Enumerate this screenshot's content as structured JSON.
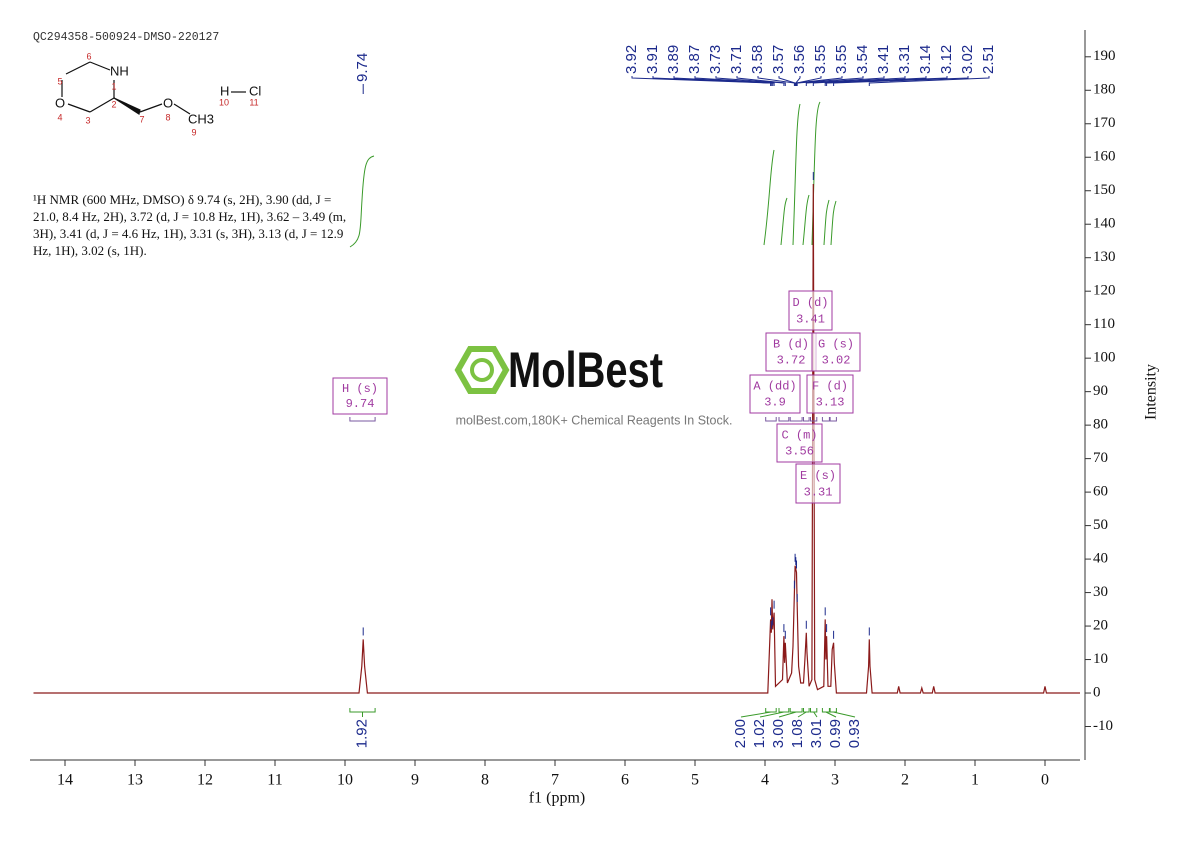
{
  "sample_id": "QC294358-500924-DMSO-220127",
  "description": "¹H NMR (600 MHz, DMSO) δ 9.74 (s, 2H), 3.90 (dd, J = 21.0, 8.4 Hz, 2H), 3.72 (d, J = 10.8 Hz, 1H), 3.62 – 3.49 (m, 3H), 3.41 (d, J = 4.6 Hz, 1H), 3.31 (s, 3H), 3.13 (d, J = 12.9 Hz, 1H), 3.02 (s, 1H).",
  "structure": {
    "atoms": [
      "NH",
      "O",
      "O",
      "CH3",
      "H",
      "Cl"
    ],
    "numbers": [
      "1",
      "2",
      "3",
      "4",
      "5",
      "6",
      "7",
      "8",
      "9",
      "10",
      "11"
    ]
  },
  "watermark": {
    "brand": "MolBest",
    "tagline": "molBest.com,180K+ Chemical Reagents In Stock."
  },
  "chart_data": {
    "type": "line",
    "xlabel": "f1 (ppm)",
    "ylabel": "Intensity",
    "xlim": [
      14.5,
      -0.5
    ],
    "xticks": [
      14,
      13,
      12,
      11,
      10,
      9,
      8,
      7,
      6,
      5,
      4,
      3,
      2,
      1,
      0
    ],
    "ylim": [
      -20,
      198
    ],
    "yticks": [
      -10,
      0,
      10,
      20,
      30,
      40,
      50,
      60,
      70,
      80,
      90,
      100,
      110,
      120,
      130,
      140,
      150,
      160,
      170,
      180,
      190
    ],
    "series": [
      {
        "color": "#8b1a1a",
        "x": [
          14.45,
          9.8,
          9.76,
          9.74,
          9.72,
          9.68,
          3.96,
          3.92,
          3.91,
          3.9,
          3.89,
          3.87,
          3.85,
          3.75,
          3.73,
          3.72,
          3.71,
          3.68,
          3.62,
          3.6,
          3.58,
          3.57,
          3.56,
          3.55,
          3.54,
          3.52,
          3.49,
          3.45,
          3.43,
          3.41,
          3.4,
          3.37,
          3.33,
          3.31,
          3.29,
          3.25,
          3.16,
          3.14,
          3.13,
          3.12,
          3.1,
          3.06,
          3.04,
          3.02,
          3.01,
          2.98,
          2.55,
          2.52,
          2.51,
          2.5,
          2.47,
          2.11,
          2.09,
          2.07,
          1.78,
          1.76,
          1.74,
          1.61,
          1.59,
          1.57,
          0.02,
          0,
          -0.02,
          -0.5
        ],
        "values": [
          0,
          0,
          8,
          16,
          8,
          0,
          0,
          22,
          18,
          28,
          19,
          24,
          2,
          4,
          17,
          9,
          15,
          3,
          6,
          14,
          30,
          38,
          37,
          36,
          26,
          8,
          3,
          3,
          10,
          18,
          12,
          2,
          4,
          152,
          4,
          1,
          2,
          22,
          10,
          17,
          2,
          2,
          13,
          15,
          9,
          0,
          0,
          8,
          16,
          8,
          0,
          0,
          2,
          0,
          0,
          1.5,
          0,
          0,
          2,
          0,
          0,
          2,
          0,
          0
        ]
      }
    ],
    "peak_labels": {
      "color": "#1c2a8c",
      "values": [
        9.74,
        3.92,
        3.91,
        3.89,
        3.87,
        3.73,
        3.71,
        3.58,
        3.57,
        3.56,
        3.55,
        3.55,
        3.54,
        3.41,
        3.31,
        3.14,
        3.12,
        3.02,
        2.51
      ]
    },
    "integrals": {
      "color": "#3a9a2a",
      "items": [
        {
          "from": 9.93,
          "to": 9.57,
          "value": 1.92
        },
        {
          "from": 3.99,
          "to": 3.84,
          "value": 2,
          "label": "2.00"
        },
        {
          "from": 3.8,
          "to": 3.66,
          "value": 1.02
        },
        {
          "from": 3.64,
          "to": 3.47,
          "value": 3,
          "label": "3.00"
        },
        {
          "from": 3.45,
          "to": 3.37,
          "value": 1.08
        },
        {
          "from": 3.35,
          "to": 3.26,
          "value": 3.01
        },
        {
          "from": 3.18,
          "to": 3.08,
          "value": 0.99
        },
        {
          "from": 3.07,
          "to": 2.98,
          "value": 0.93
        }
      ]
    },
    "multiplets": {
      "color": "#a03aa0",
      "items": [
        {
          "name": "H (s)",
          "shift": 9.74
        },
        {
          "name": "A (dd)",
          "shift": 3.9
        },
        {
          "name": "B (d)",
          "shift": 3.72
        },
        {
          "name": "C (m)",
          "shift": 3.56
        },
        {
          "name": "D (d)",
          "shift": 3.41
        },
        {
          "name": "E (s)",
          "shift": 3.31
        },
        {
          "name": "F (d)",
          "shift": 3.13
        },
        {
          "name": "G (s)",
          "shift": 3.02
        }
      ]
    }
  }
}
